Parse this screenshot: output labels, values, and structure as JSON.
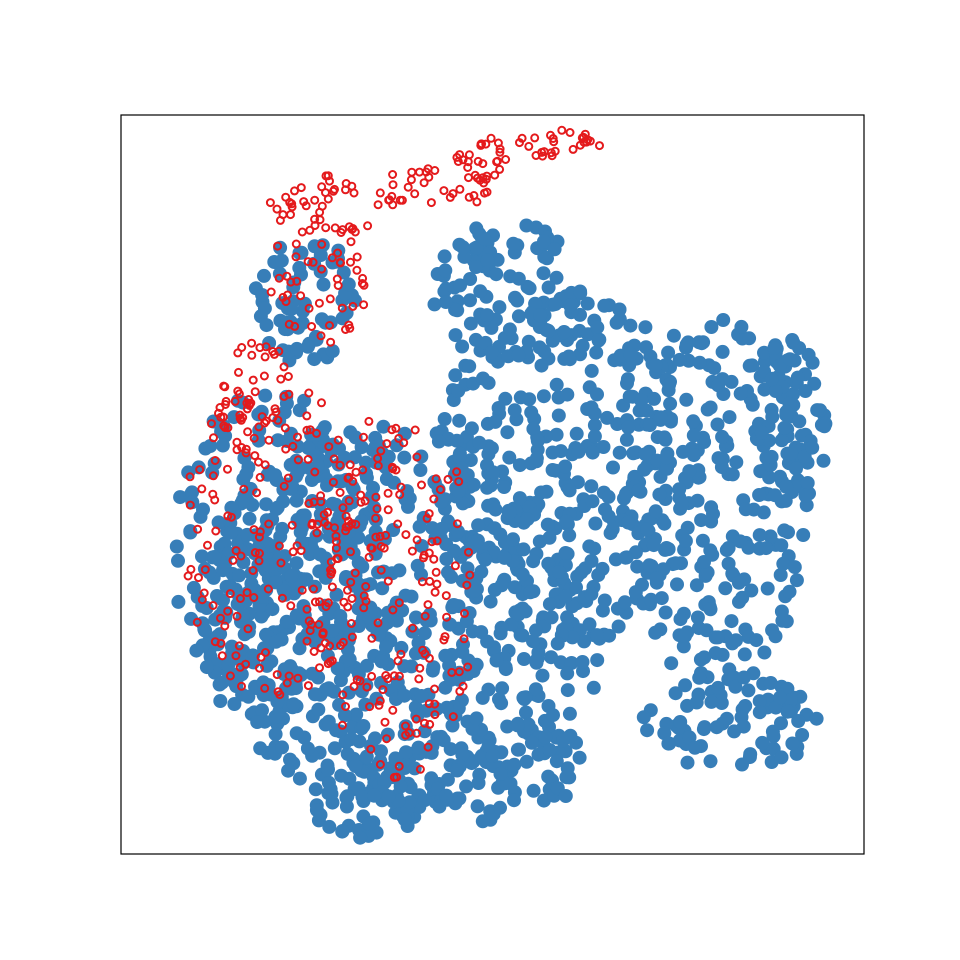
{
  "chart_data": {
    "type": "scatter",
    "title": "",
    "xlabel": "",
    "ylabel": "",
    "xticks": [],
    "yticks": [],
    "grid": false,
    "legend": "none",
    "xlim": [
      0,
      100
    ],
    "ylim": [
      0,
      100
    ],
    "series": [
      {
        "color": "#377eb8",
        "marker": "filled-circle",
        "regions": [
          {
            "cx": 38,
            "cy": 32,
            "rx": 28,
            "ry": 26
          },
          {
            "cx": 60,
            "cy": 52,
            "rx": 18,
            "ry": 24
          },
          {
            "cx": 80,
            "cy": 48,
            "rx": 13,
            "ry": 25
          },
          {
            "cx": 90,
            "cy": 58,
            "rx": 5,
            "ry": 12
          },
          {
            "cx": 82,
            "cy": 18,
            "rx": 12,
            "ry": 7
          },
          {
            "cx": 20,
            "cy": 40,
            "rx": 13,
            "ry": 23
          },
          {
            "cx": 45,
            "cy": 12,
            "rx": 18,
            "ry": 8
          },
          {
            "cx": 25,
            "cy": 75,
            "rx": 7,
            "ry": 9
          },
          {
            "cx": 52,
            "cy": 76,
            "rx": 10,
            "ry": 10
          },
          {
            "cx": 33,
            "cy": 6,
            "rx": 7,
            "ry": 4
          }
        ]
      },
      {
        "color": "#e41a1c",
        "marker": "hollow-circle",
        "regions": [
          {
            "cx": 21,
            "cy": 43,
            "rx": 13,
            "ry": 22
          },
          {
            "cx": 37,
            "cy": 35,
            "rx": 11,
            "ry": 25
          },
          {
            "cx": 27,
            "cy": 78,
            "rx": 7,
            "ry": 9
          },
          {
            "cx": 28,
            "cy": 88,
            "rx": 8,
            "ry": 4
          },
          {
            "cx": 42,
            "cy": 90,
            "rx": 8,
            "ry": 3
          },
          {
            "cx": 49,
            "cy": 94,
            "rx": 4,
            "ry": 3
          },
          {
            "cx": 59,
            "cy": 96,
            "rx": 6,
            "ry": 2
          },
          {
            "cx": 18,
            "cy": 62,
            "rx": 5,
            "ry": 8
          }
        ]
      }
    ]
  }
}
